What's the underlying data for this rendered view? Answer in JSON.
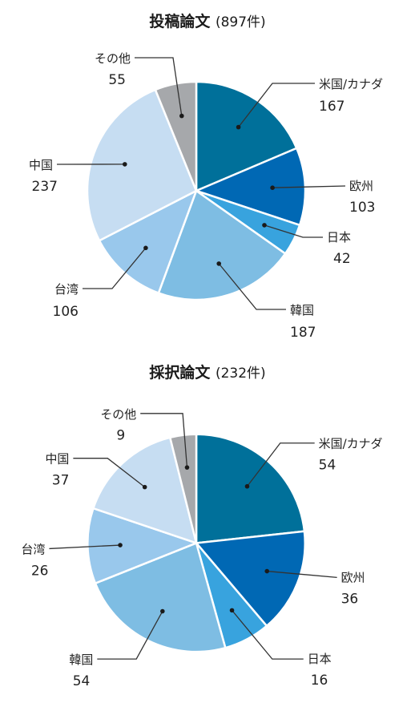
{
  "colors": {
    "米国/カナダ": "#00709a",
    "欧州": "#0068b4",
    "日本": "#38a3de",
    "韓国": "#7ebde3",
    "台湾": "#99c8ec",
    "中国": "#c6ddf2",
    "その他": "#a6a8ab"
  },
  "chart_data": [
    {
      "type": "pie",
      "title": "投稿論文",
      "total_label": "(897件)",
      "categories": [
        "米国/カナダ",
        "欧州",
        "日本",
        "韓国",
        "台湾",
        "中国",
        "その他"
      ],
      "values": [
        167,
        103,
        42,
        187,
        106,
        237,
        55
      ]
    },
    {
      "type": "pie",
      "title": "採択論文",
      "total_label": "(232件)",
      "categories": [
        "米国/カナダ",
        "欧州",
        "日本",
        "韓国",
        "台湾",
        "中国",
        "その他"
      ],
      "values": [
        54,
        36,
        16,
        54,
        26,
        37,
        9
      ]
    }
  ]
}
